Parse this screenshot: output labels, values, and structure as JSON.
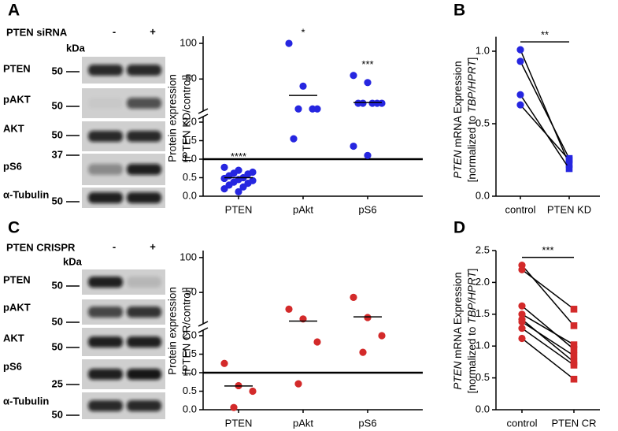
{
  "panel_labels": [
    "A",
    "B",
    "C",
    "D"
  ],
  "blots": [
    {
      "treatment": "PTEN siRNA",
      "lanes": [
        "-",
        "+"
      ],
      "unit": "kDa",
      "rows": [
        {
          "name": "PTEN",
          "kda": 50
        },
        {
          "name": "pAKT",
          "kda": 50
        },
        {
          "name": "AKT",
          "kda": 50
        },
        {
          "name": "pS6",
          "kda": 37
        },
        {
          "name": "α-Tubulin",
          "kda": 50
        }
      ]
    },
    {
      "treatment": "PTEN CRISPR",
      "lanes": [
        "-",
        "+"
      ],
      "unit": "kDa",
      "rows": [
        {
          "name": "PTEN",
          "kda": 50
        },
        {
          "name": "pAKT",
          "kda": 50
        },
        {
          "name": "AKT",
          "kda": 50
        },
        {
          "name": "pS6",
          "kda": 25
        },
        {
          "name": "α-Tubulin",
          "kda": 50
        }
      ]
    }
  ],
  "chart_data": [
    {
      "type": "broken-scatter",
      "ylabel": [
        "Protein expression",
        "[PTEN KD/control]"
      ],
      "categories": [
        "PTEN",
        "pAkt",
        "pS6"
      ],
      "values": [
        [
          0.78,
          0.7,
          0.65,
          0.62,
          0.6,
          0.55,
          0.5,
          0.48,
          0.45,
          0.42,
          0.38,
          0.35,
          0.3,
          0.25,
          0.2,
          0.12
        ],
        [
          100,
          40,
          8,
          8,
          8,
          1.55
        ],
        [
          55,
          45,
          16,
          16,
          16,
          16,
          16,
          1.35,
          1.1
        ]
      ],
      "means": [
        0.5,
        27,
        17
      ],
      "significance": [
        "****",
        "*",
        "***"
      ],
      "color": "#2626e0",
      "ylim": [
        0,
        2
      ],
      "yticks": [
        {
          "value": 0,
          "label": "0.0"
        },
        0.5,
        {
          "value": 1,
          "label": "1.0"
        },
        1.5,
        {
          "value": 2,
          "label": "2.0"
        }
      ],
      "ylim_upper": [
        5,
        110
      ],
      "yticks_upper": [
        50,
        100
      ],
      "reference_line": 1
    },
    {
      "type": "paired",
      "ylabel": [
        [
          "PTEN",
          " mRNA Expression"
        ],
        [
          "[normalized to ",
          "TBP/HPRT",
          "]"
        ]
      ],
      "categories": [
        "control",
        "PTEN KD"
      ],
      "series": [
        {
          "values": [
            1.01,
            0.22
          ]
        },
        {
          "values": [
            0.93,
            0.26
          ]
        },
        {
          "values": [
            0.7,
            0.19
          ]
        },
        {
          "values": [
            0.63,
            0.25
          ]
        }
      ],
      "color": "#2626e0",
      "line_color": "#000000",
      "ylim": [
        0,
        1.1
      ],
      "yticks": [
        {
          "value": 0,
          "label": "0.0"
        },
        0.5,
        {
          "value": 1,
          "label": "1.0"
        }
      ],
      "significance": "**"
    },
    {
      "type": "broken-scatter",
      "ylabel": [
        "Protein expression",
        "[PTEN CR/control]"
      ],
      "categories": [
        "PTEN",
        "pAkt",
        "pS6"
      ],
      "values": [
        [
          1.25,
          0.65,
          0.5,
          0.06
        ],
        [
          26,
          12,
          1.83,
          0.7
        ],
        [
          43,
          14,
          2.0,
          1.55
        ]
      ],
      "means": [
        0.64,
        9,
        15
      ],
      "color": "#d32a2a",
      "ylim": [
        0,
        2
      ],
      "yticks": [
        {
          "value": 0,
          "label": "0.0"
        },
        0.5,
        {
          "value": 1,
          "label": "1.0"
        },
        1.5,
        {
          "value": 2,
          "label": "2.0"
        }
      ],
      "ylim_upper": [
        5,
        110
      ],
      "yticks_upper": [
        50,
        100
      ],
      "reference_line": 1
    },
    {
      "type": "paired",
      "ylabel": [
        [
          "PTEN",
          " mRNA Expression"
        ],
        [
          "[normalized to ",
          "TBP/HPRT",
          "]"
        ]
      ],
      "categories": [
        "control",
        "PTEN CR"
      ],
      "series": [
        {
          "values": [
            2.27,
            1.32
          ]
        },
        {
          "values": [
            2.2,
            1.58
          ]
        },
        {
          "values": [
            1.63,
            0.95
          ]
        },
        {
          "values": [
            1.5,
            1.02
          ]
        },
        {
          "values": [
            1.42,
            0.75
          ]
        },
        {
          "values": [
            1.38,
            0.85
          ]
        },
        {
          "values": [
            1.28,
            0.7
          ]
        },
        {
          "values": [
            1.12,
            0.48
          ]
        }
      ],
      "color": "#d32a2a",
      "line_color": "#000000",
      "ylim": [
        0,
        2.5
      ],
      "yticks": [
        {
          "value": 0,
          "label": "0.0"
        },
        0.5,
        {
          "value": 1,
          "label": "1.0"
        },
        1.5,
        {
          "value": 2,
          "label": "2.0"
        },
        2.5
      ],
      "significance": "***"
    }
  ]
}
